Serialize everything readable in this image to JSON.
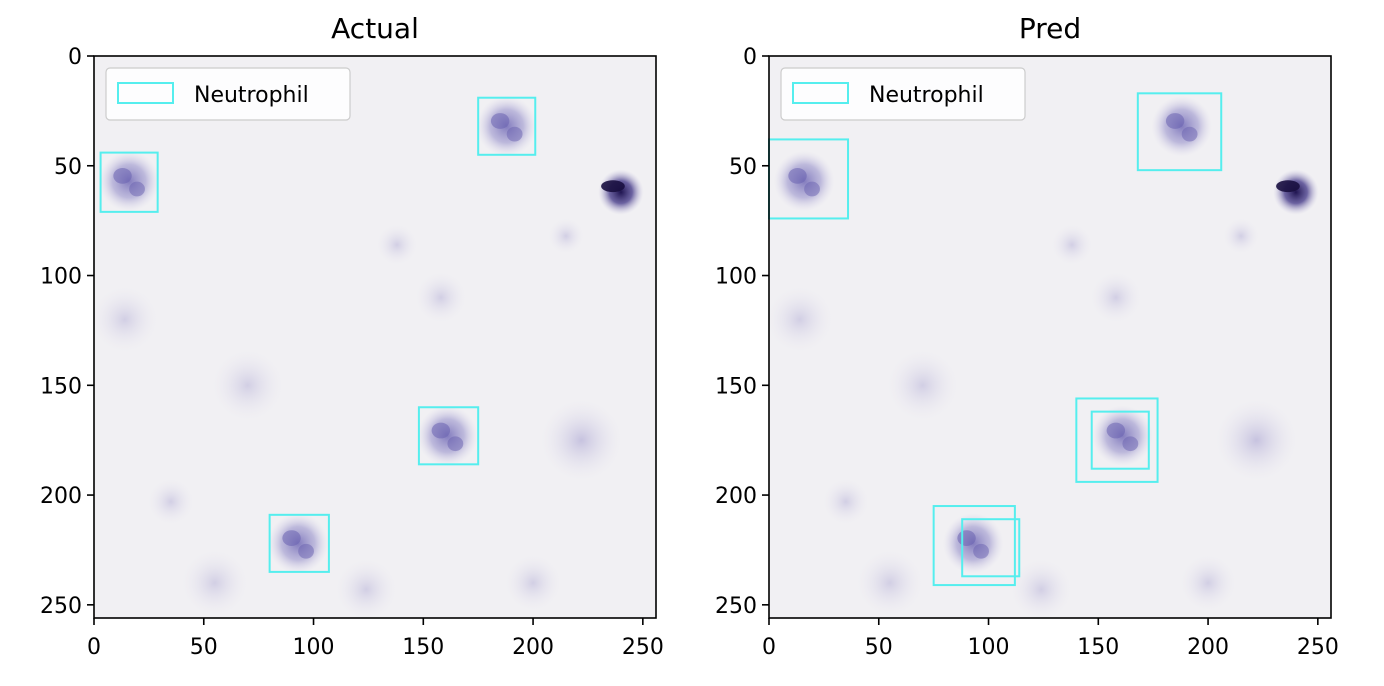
{
  "chart_data": [
    {
      "type": "scatter",
      "title": "Actual",
      "xlabel": "",
      "ylabel": "",
      "xlim": [
        0,
        256
      ],
      "ylim": [
        256,
        0
      ],
      "xticks": [
        0,
        50,
        100,
        150,
        200,
        250
      ],
      "yticks": [
        0,
        50,
        100,
        150,
        200,
        250
      ],
      "legend": {
        "label": "Neutrophil",
        "placement": "upper-left",
        "color": "#55eeee"
      },
      "boxes": [
        {
          "label": "Neutrophil",
          "x0": 3,
          "y0": 44,
          "x1": 29,
          "y1": 71
        },
        {
          "label": "Neutrophil",
          "x0": 175,
          "y0": 19,
          "x1": 201,
          "y1": 45
        },
        {
          "label": "Neutrophil",
          "x0": 148,
          "y0": 160,
          "x1": 175,
          "y1": 186
        },
        {
          "label": "Neutrophil",
          "x0": 80,
          "y0": 209,
          "x1": 107,
          "y1": 235
        }
      ],
      "image": {
        "background": "#f1f0f3",
        "cells": [
          {
            "x": 16,
            "y": 57,
            "r": 12,
            "kind": "neutrophil"
          },
          {
            "x": 188,
            "y": 32,
            "r": 12,
            "kind": "neutrophil"
          },
          {
            "x": 161,
            "y": 173,
            "r": 12,
            "kind": "neutrophil"
          },
          {
            "x": 93,
            "y": 222,
            "r": 12,
            "kind": "neutrophil"
          },
          {
            "x": 240,
            "y": 62,
            "r": 9,
            "kind": "dark"
          },
          {
            "x": 138,
            "y": 86,
            "r": 8,
            "kind": "pale"
          },
          {
            "x": 158,
            "y": 110,
            "r": 10,
            "kind": "pale"
          },
          {
            "x": 14,
            "y": 120,
            "r": 13,
            "kind": "pale"
          },
          {
            "x": 70,
            "y": 150,
            "r": 14,
            "kind": "pale"
          },
          {
            "x": 222,
            "y": 175,
            "r": 16,
            "kind": "faint"
          },
          {
            "x": 55,
            "y": 240,
            "r": 13,
            "kind": "pale"
          },
          {
            "x": 124,
            "y": 243,
            "r": 12,
            "kind": "pale"
          },
          {
            "x": 35,
            "y": 203,
            "r": 9,
            "kind": "pale"
          },
          {
            "x": 200,
            "y": 240,
            "r": 11,
            "kind": "pale"
          },
          {
            "x": 215,
            "y": 82,
            "r": 7,
            "kind": "pale"
          }
        ]
      }
    },
    {
      "type": "scatter",
      "title": "Pred",
      "xlabel": "",
      "ylabel": "",
      "xlim": [
        0,
        256
      ],
      "ylim": [
        256,
        0
      ],
      "xticks": [
        0,
        50,
        100,
        150,
        200,
        250
      ],
      "yticks": [
        0,
        50,
        100,
        150,
        200,
        250
      ],
      "legend": {
        "label": "Neutrophil",
        "placement": "upper-left",
        "color": "#55eeee"
      },
      "boxes": [
        {
          "label": "Neutrophil",
          "x0": 0,
          "y0": 38,
          "x1": 36,
          "y1": 74
        },
        {
          "label": "Neutrophil",
          "x0": 168,
          "y0": 17,
          "x1": 206,
          "y1": 52
        },
        {
          "label": "Neutrophil",
          "x0": 140,
          "y0": 156,
          "x1": 177,
          "y1": 194
        },
        {
          "label": "Neutrophil",
          "x0": 147,
          "y0": 162,
          "x1": 173,
          "y1": 188
        },
        {
          "label": "Neutrophil",
          "x0": 75,
          "y0": 205,
          "x1": 112,
          "y1": 241
        },
        {
          "label": "Neutrophil",
          "x0": 88,
          "y0": 211,
          "x1": 114,
          "y1": 237
        }
      ],
      "image": {
        "background": "#f1f0f3",
        "cells": [
          {
            "x": 16,
            "y": 57,
            "r": 12,
            "kind": "neutrophil"
          },
          {
            "x": 188,
            "y": 32,
            "r": 12,
            "kind": "neutrophil"
          },
          {
            "x": 161,
            "y": 173,
            "r": 12,
            "kind": "neutrophil"
          },
          {
            "x": 93,
            "y": 222,
            "r": 12,
            "kind": "neutrophil"
          },
          {
            "x": 240,
            "y": 62,
            "r": 9,
            "kind": "dark"
          },
          {
            "x": 138,
            "y": 86,
            "r": 8,
            "kind": "pale"
          },
          {
            "x": 158,
            "y": 110,
            "r": 10,
            "kind": "pale"
          },
          {
            "x": 14,
            "y": 120,
            "r": 13,
            "kind": "pale"
          },
          {
            "x": 70,
            "y": 150,
            "r": 14,
            "kind": "pale"
          },
          {
            "x": 222,
            "y": 175,
            "r": 16,
            "kind": "faint"
          },
          {
            "x": 55,
            "y": 240,
            "r": 13,
            "kind": "pale"
          },
          {
            "x": 124,
            "y": 243,
            "r": 12,
            "kind": "pale"
          },
          {
            "x": 35,
            "y": 203,
            "r": 9,
            "kind": "pale"
          },
          {
            "x": 200,
            "y": 240,
            "r": 11,
            "kind": "pale"
          },
          {
            "x": 215,
            "y": 82,
            "r": 7,
            "kind": "pale"
          }
        ]
      }
    }
  ]
}
